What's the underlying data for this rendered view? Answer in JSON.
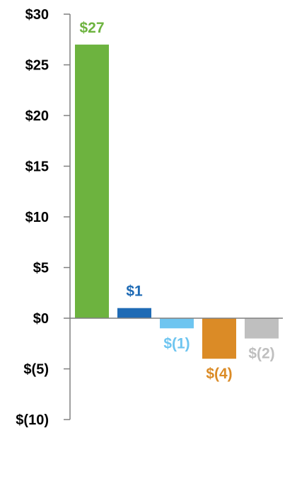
{
  "chart_data": {
    "type": "bar",
    "title": "",
    "xlabel": "",
    "ylabel": "",
    "ylim": [
      -10,
      30
    ],
    "yticks": [
      30,
      25,
      20,
      15,
      10,
      5,
      0,
      -5,
      -10
    ],
    "ytick_labels": [
      "$30",
      "$25",
      "$20",
      "$15",
      "$10",
      "$5",
      "$0",
      "$(5)",
      "$(10)"
    ],
    "grid": false,
    "legend": "none",
    "bars": [
      {
        "value": 27,
        "label": "$27",
        "color": "#6DB33F"
      },
      {
        "value": 1,
        "label": "$1",
        "color": "#1F6BB5"
      },
      {
        "value": -1,
        "label": "$(1)",
        "color": "#6EC5F0"
      },
      {
        "value": -4,
        "label": "$(4)",
        "color": "#DB8B26"
      },
      {
        "value": -2,
        "label": "$(2)",
        "color": "#BFBFBF"
      }
    ]
  }
}
